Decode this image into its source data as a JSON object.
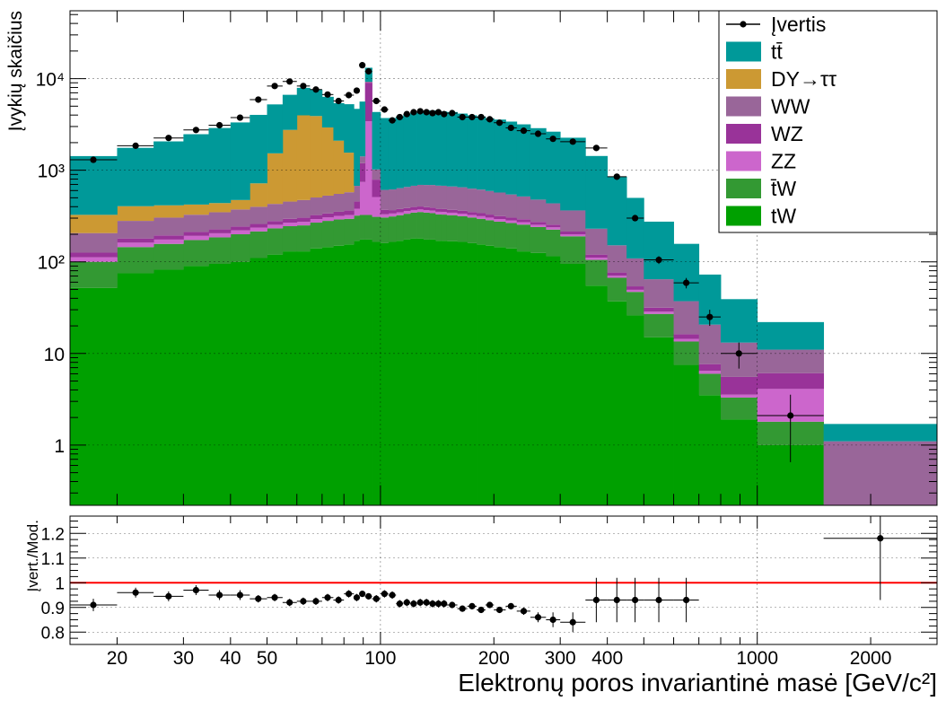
{
  "chart_data": [
    {
      "type": "area",
      "kind": "stacked-histogram-log",
      "ylabel": "Įvykių skaičius",
      "yscale": "log",
      "ylim": [
        0.22,
        55000
      ],
      "y_ticks": [
        {
          "value": 1,
          "label": "1"
        },
        {
          "value": 10,
          "label": "10"
        },
        {
          "value": 100,
          "label": "10²"
        },
        {
          "value": 1000,
          "label": "10³"
        },
        {
          "value": 10000,
          "label": "10⁴"
        }
      ],
      "grid": true,
      "legend_placement": "top-right",
      "bin_edges": [
        15,
        20,
        25,
        30,
        35,
        40,
        45,
        50,
        55,
        60,
        65,
        70,
        75,
        80,
        85,
        88,
        91,
        95,
        100,
        105,
        110,
        115,
        120,
        125,
        130,
        135,
        140,
        145,
        150,
        160,
        170,
        180,
        190,
        200,
        215,
        230,
        250,
        275,
        300,
        350,
        400,
        450,
        500,
        600,
        700,
        800,
        1000,
        1500,
        3000
      ],
      "series": [
        {
          "name": "tW",
          "color": "#00a000",
          "values": [
            52,
            75,
            82,
            90,
            95,
            100,
            110,
            120,
            130,
            130,
            140,
            145,
            150,
            155,
            170,
            175,
            175,
            165,
            160,
            165,
            170,
            175,
            180,
            180,
            175,
            175,
            170,
            170,
            168,
            165,
            160,
            155,
            150,
            145,
            140,
            130,
            125,
            115,
            95,
            55,
            37,
            26,
            15,
            7.5,
            3.5,
            1.9,
            1.0,
            0.0
          ]
        },
        {
          "name": "t̄W",
          "color": "#339933",
          "values": [
            48,
            70,
            75,
            83,
            90,
            100,
            105,
            112,
            115,
            120,
            128,
            135,
            140,
            140,
            150,
            150,
            150,
            145,
            145,
            148,
            153,
            160,
            165,
            170,
            170,
            165,
            160,
            158,
            155,
            150,
            145,
            140,
            135,
            130,
            125,
            125,
            115,
            110,
            95,
            50,
            30,
            21,
            12,
            6,
            2.5,
            1.4,
            0.8,
            0.0
          ]
        },
        {
          "name": "ZZ",
          "color": "#cc66cc",
          "values": [
            12,
            17,
            18,
            19,
            20,
            21,
            21,
            22,
            23,
            24,
            25,
            25,
            27,
            30,
            60,
            420,
            3100,
            200,
            25,
            24,
            24,
            23,
            23,
            23,
            22,
            22,
            22,
            22,
            21,
            21,
            20,
            20,
            19,
            18,
            17,
            16,
            14,
            13,
            10,
            6,
            3.5,
            2.5,
            1.6,
            0.9,
            0.45,
            0.25,
            2.3,
            0.0
          ]
        },
        {
          "name": "WZ",
          "color": "#993399",
          "values": [
            14,
            18,
            19,
            20,
            21,
            22,
            23,
            25,
            27,
            29,
            31,
            33,
            35,
            40,
            75,
            450,
            5600,
            280,
            40,
            30,
            30,
            29,
            29,
            29,
            28,
            28,
            27,
            27,
            26,
            26,
            25,
            25,
            24,
            23,
            22,
            21,
            19,
            17,
            14,
            9,
            6,
            4.5,
            3,
            1.8,
            1.2,
            2.0,
            2.0,
            0.0
          ]
        },
        {
          "name": "WW",
          "color": "#996699",
          "values": [
            80,
            100,
            110,
            115,
            122,
            130,
            140,
            150,
            160,
            170,
            180,
            190,
            200,
            210,
            220,
            220,
            220,
            230,
            240,
            250,
            260,
            270,
            280,
            290,
            295,
            300,
            300,
            300,
            295,
            290,
            280,
            275,
            265,
            255,
            240,
            225,
            205,
            180,
            150,
            110,
            75,
            55,
            33,
            21,
            13,
            7.6,
            4.9,
            1.1
          ]
        },
        {
          "name": "DY→ττ",
          "color": "#cc9933",
          "values": [
            120,
            125,
            110,
            95,
            90,
            100,
            320,
            1100,
            2300,
            3500,
            3400,
            2400,
            1550,
            980,
            0,
            0,
            0,
            0,
            0,
            0,
            0,
            0,
            0,
            0,
            0,
            0,
            0,
            0,
            0,
            0,
            0,
            0,
            0,
            0,
            0,
            0,
            0,
            0,
            0,
            0,
            0,
            0,
            0,
            0,
            0,
            0,
            0,
            0
          ]
        },
        {
          "name": "tt̄",
          "color": "#009999",
          "values": [
            1100,
            1350,
            1650,
            2050,
            2450,
            2850,
            3300,
            3700,
            3900,
            3950,
            3650,
            3400,
            3300,
            3700,
            4000,
            4200,
            3900,
            3300,
            3100,
            3100,
            3250,
            3400,
            3550,
            3700,
            3800,
            3800,
            3750,
            3700,
            3650,
            3500,
            3350,
            3250,
            3100,
            3000,
            2850,
            2650,
            2400,
            2200,
            1900,
            1200,
            700,
            390,
            210,
            120,
            52,
            26,
            11,
            0.6
          ]
        }
      ],
      "data": {
        "name": "Įvertis",
        "x": [
          17.3,
          22.4,
          27.4,
          32.4,
          37.4,
          42.4,
          47.4,
          52.4,
          57.4,
          62.4,
          67.4,
          72.4,
          77.4,
          82.4,
          86.5,
          89.5,
          93,
          97.5,
          102.5,
          107.5,
          112.5,
          117.5,
          122.5,
          127.5,
          132.5,
          137.5,
          142.5,
          147.5,
          155,
          165,
          175,
          185,
          195,
          207,
          222,
          240,
          262,
          287,
          324,
          374,
          424,
          474,
          548,
          648,
          748,
          894,
          1225,
          2121
        ],
        "y": [
          1300,
          1850,
          2250,
          2750,
          3100,
          3750,
          5900,
          8300,
          9300,
          8300,
          7600,
          6700,
          5700,
          6600,
          7400,
          14000,
          12000,
          5700,
          4600,
          3500,
          3800,
          4100,
          4300,
          4400,
          4300,
          4200,
          4300,
          4100,
          4200,
          3800,
          3800,
          3800,
          3600,
          3300,
          2900,
          2700,
          2500,
          2200,
          2050,
          1750,
          850,
          300,
          105,
          59,
          25,
          10,
          2.1,
          0.0
        ]
      }
    },
    {
      "type": "scatter",
      "kind": "ratio",
      "ylabel": "Įvert./Mod.",
      "xlabel": "Elektronų poros invariantinė masė [GeV/c²]",
      "xscale": "log",
      "xlim": [
        15,
        3000
      ],
      "ylim": [
        0.75,
        1.27
      ],
      "y_ticks": [
        {
          "value": 0.8,
          "label": "0.8"
        },
        {
          "value": 0.9,
          "label": "0.9"
        },
        {
          "value": 1.0,
          "label": "1"
        },
        {
          "value": 1.1,
          "label": "1.1"
        },
        {
          "value": 1.2,
          "label": "1.2"
        }
      ],
      "x_ticks": [
        {
          "value": 20,
          "label": "20"
        },
        {
          "value": 30,
          "label": "30"
        },
        {
          "value": 40,
          "label": "40"
        },
        {
          "value": 50,
          "label": "50"
        },
        {
          "value": 100,
          "label": "100"
        },
        {
          "value": 200,
          "label": "200"
        },
        {
          "value": 300,
          "label": "300"
        },
        {
          "value": 400,
          "label": "400"
        },
        {
          "value": 1000,
          "label": "1000"
        },
        {
          "value": 2000,
          "label": "2000"
        }
      ],
      "reference_line": {
        "value": 1.0,
        "color": "#ff0000"
      },
      "x": [
        17.3,
        22.4,
        27.4,
        32.4,
        37.4,
        42.4,
        47.4,
        52.4,
        57.4,
        62.4,
        67.4,
        72.4,
        77.4,
        82.4,
        86.5,
        89.5,
        93,
        97.5,
        102.5,
        107.5,
        112.5,
        117.5,
        122.5,
        127.5,
        132.5,
        137.5,
        142.5,
        147.5,
        155,
        165,
        175,
        185,
        195,
        207,
        222,
        240,
        262,
        287,
        324,
        374,
        424,
        474,
        548,
        648,
        2121
      ],
      "y": [
        0.91,
        0.96,
        0.945,
        0.97,
        0.95,
        0.95,
        0.935,
        0.94,
        0.92,
        0.925,
        0.925,
        0.94,
        0.93,
        0.955,
        0.94,
        0.955,
        0.945,
        0.935,
        0.955,
        0.95,
        0.915,
        0.92,
        0.915,
        0.92,
        0.92,
        0.915,
        0.915,
        0.915,
        0.91,
        0.895,
        0.905,
        0.89,
        0.91,
        0.89,
        0.905,
        0.885,
        0.86,
        0.85,
        0.84,
        0.93,
        0.93,
        0.93,
        0.93,
        0.93,
        1.18
      ],
      "y_err": [
        0.025,
        0.02,
        0.02,
        0.02,
        0.02,
        0.02,
        0.015,
        0.015,
        0.015,
        0.015,
        0.015,
        0.015,
        0.015,
        0.015,
        0.015,
        0.012,
        0.012,
        0.015,
        0.015,
        0.015,
        0.015,
        0.015,
        0.015,
        0.015,
        0.015,
        0.015,
        0.015,
        0.015,
        0.012,
        0.012,
        0.012,
        0.012,
        0.012,
        0.012,
        0.012,
        0.015,
        0.02,
        0.03,
        0.04,
        0.09,
        0.09,
        0.09,
        0.09,
        0.09,
        0.25
      ]
    }
  ]
}
